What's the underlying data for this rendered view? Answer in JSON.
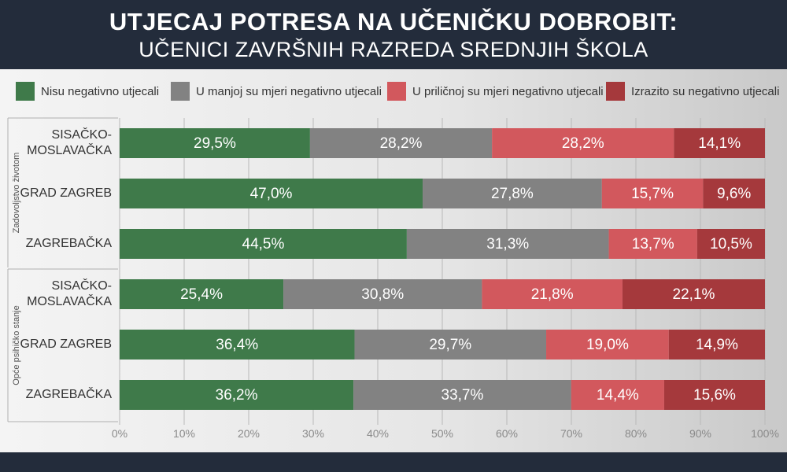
{
  "header": {
    "title": "UTJECAJ POTRESA NA UČENIČKU DOBROBIT:",
    "subtitle": "UČENICI ZAVRŠNIH RAZREDA SREDNJIH ŠKOLA"
  },
  "chart_data": {
    "type": "bar",
    "orientation": "horizontal",
    "stacked": true,
    "xlim": [
      0,
      100
    ],
    "x_ticks": [
      "0%",
      "10%",
      "20%",
      "30%",
      "40%",
      "50%",
      "60%",
      "70%",
      "80%",
      "90%",
      "100%"
    ],
    "grid": true,
    "legend_position": "top",
    "groups": [
      {
        "label": "Zadovoljstvo životom",
        "categories": [
          {
            "label": [
              "SISAČKO-",
              "MOSLAVAČKA"
            ],
            "values": [
              29.5,
              28.2,
              28.2,
              14.1
            ],
            "value_labels": [
              "29,5%",
              "28,2%",
              "28,2%",
              "14,1%"
            ]
          },
          {
            "label": [
              "GRAD ZAGREB"
            ],
            "values": [
              47.0,
              27.8,
              15.7,
              9.6
            ],
            "value_labels": [
              "47,0%",
              "27,8%",
              "15,7%",
              "9,6%"
            ]
          },
          {
            "label": [
              "ZAGREBAČKA"
            ],
            "values": [
              44.5,
              31.3,
              13.7,
              10.5
            ],
            "value_labels": [
              "44,5%",
              "31,3%",
              "13,7%",
              "10,5%"
            ]
          }
        ]
      },
      {
        "label": "Opće psihičko stanje",
        "categories": [
          {
            "label": [
              "SISAČKO-",
              "MOSLAVAČKA"
            ],
            "values": [
              25.4,
              30.8,
              21.8,
              22.1
            ],
            "value_labels": [
              "25,4%",
              "30,8%",
              "21,8%",
              "22,1%"
            ]
          },
          {
            "label": [
              "GRAD ZAGREB"
            ],
            "values": [
              36.4,
              29.7,
              19.0,
              14.9
            ],
            "value_labels": [
              "36,4%",
              "29,7%",
              "19,0%",
              "14,9%"
            ]
          },
          {
            "label": [
              "ZAGREBAČKA"
            ],
            "values": [
              36.2,
              33.7,
              14.4,
              15.6
            ],
            "value_labels": [
              "36,2%",
              "33,7%",
              "14,4%",
              "15,6%"
            ]
          }
        ]
      }
    ],
    "series": [
      {
        "name": "Nisu negativno utjecali",
        "color": "#3f7a4a"
      },
      {
        "name": "U manjoj su mjeri negativno utjecali",
        "color": "#828282"
      },
      {
        "name": "U priličnoj su mjeri negativno utjecali",
        "color": "#d2585d"
      },
      {
        "name": "Izrazito su negativno utjecali",
        "color": "#a5393c"
      }
    ]
  }
}
